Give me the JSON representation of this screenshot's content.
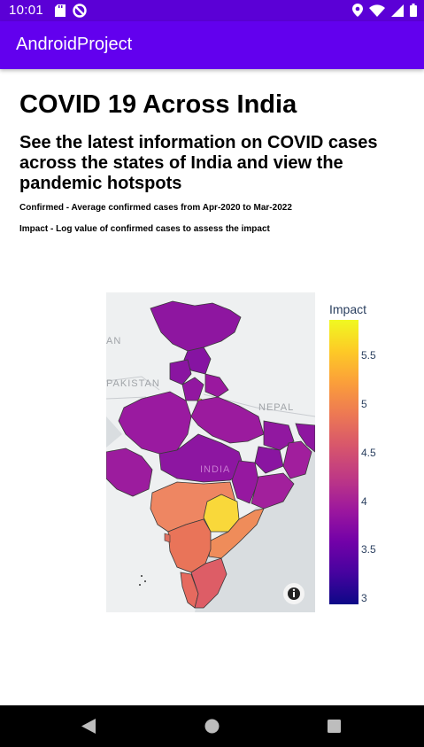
{
  "status_bar": {
    "time": "10:01"
  },
  "app_bar": {
    "title": "AndroidProject"
  },
  "content": {
    "heading": "COVID 19 Across India",
    "subheading": "See the latest information on COVID cases across the states of India and view the pandemic hotspots",
    "note_confirmed": "Confirmed - Average confirmed cases from Apr-2020 to Mar-2022",
    "note_impact": "Impact - Log value of confirmed cases to assess the impact"
  },
  "map": {
    "labels": {
      "pakistan": "PAKISTAN",
      "nepal": "NEPAL",
      "india": "INDIA",
      "partial": "AN"
    },
    "colorbar_title": "Impact",
    "ticks": [
      "5.5",
      "5",
      "4.5",
      "4",
      "3.5",
      "3"
    ],
    "colors": {
      "low": "#0d0887",
      "mid": "#9c179e",
      "high": "#f0f921",
      "land": "#eef0f1",
      "water": "#d9dde0"
    }
  },
  "icons": {
    "status": [
      "sd-card-icon",
      "no-disturb-icon",
      "location-icon",
      "wifi-icon",
      "signal-icon",
      "battery-icon"
    ],
    "nav": [
      "back-icon",
      "home-icon",
      "recents-icon"
    ],
    "map": "info-icon"
  }
}
